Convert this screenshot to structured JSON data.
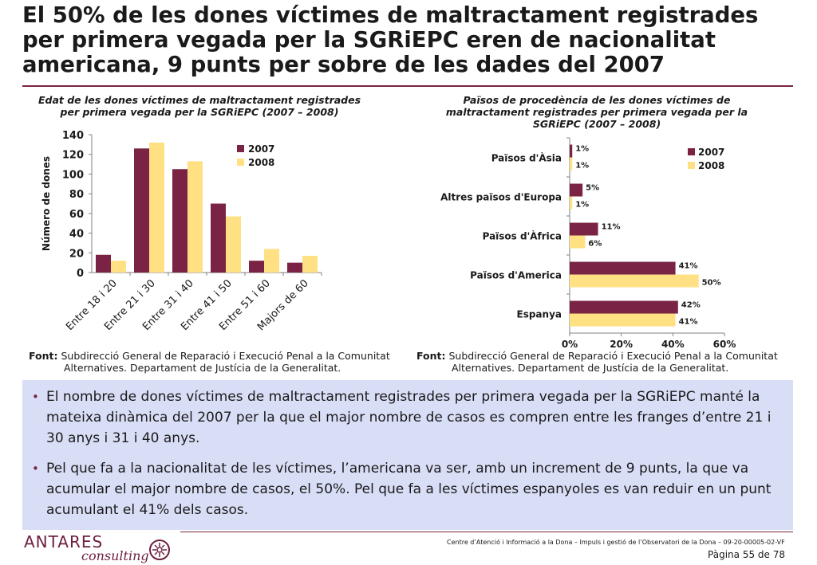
{
  "title": "El 50% de les dones víctimes de maltractament registrades per primera vegada per la SGRiEPC eren de nacionalitat americana, 9 punts per sobre de les dades del 2007",
  "colors": {
    "series_2007": "#7a2345",
    "series_2008": "#ffe083",
    "accent": "#7a2345",
    "bullets_bg": "#d9def7"
  },
  "chart_data": [
    {
      "type": "bar",
      "title": "Edat de les dones víctimes de maltractament registrades per primera vegada per la SGRiEPC (2007 – 2008)",
      "ylabel": "Número de dones",
      "xlabel": "",
      "categories": [
        "Entre 18 i 20",
        "Entre 21 i 30",
        "Entre 31 i 40",
        "Entre 41 i 50",
        "Entre 51 i 60",
        "Majors de 60"
      ],
      "series": [
        {
          "name": "2007",
          "values": [
            18,
            126,
            105,
            70,
            12,
            10
          ]
        },
        {
          "name": "2008",
          "values": [
            12,
            132,
            113,
            57,
            24,
            17
          ]
        }
      ],
      "ylim": [
        0,
        140
      ],
      "yticks": [
        "0",
        "20",
        "40",
        "60",
        "80",
        "100",
        "120",
        "140"
      ],
      "legend": "top-right",
      "grid": false
    },
    {
      "type": "bar",
      "orientation": "horizontal",
      "title": "Països de procedència de les dones víctimes de maltractament registrades per primera vegada per la SGRiEPC (2007 – 2008)",
      "categories": [
        "Països d'Àsia",
        "Altres països d'Europa",
        "Països d'Àfrica",
        "Països d'America",
        "Espanya"
      ],
      "series": [
        {
          "name": "2007",
          "values": [
            1,
            5,
            11,
            41,
            42
          ],
          "labels": [
            "1%",
            "5%",
            "11%",
            "41%",
            "42%"
          ]
        },
        {
          "name": "2008",
          "values": [
            1,
            1,
            6,
            50,
            41
          ],
          "labels": [
            "1%",
            "1%",
            "6%",
            "50%",
            "41%"
          ]
        }
      ],
      "xlim": [
        0,
        60
      ],
      "xticks": [
        "0%",
        "20%",
        "40%",
        "60%"
      ],
      "legend": "top-right",
      "grid": false
    }
  ],
  "source_notes": [
    {
      "label": "Font:",
      "line1": " Subdirecció General de Reparació i Execució Penal a la Comunitat",
      "line2": "Alternatives. Departament de Justícia de la Generalitat."
    },
    {
      "label": "Font:",
      "line1": " Subdirecció General de Reparació i Execució Penal a la Comunitat",
      "line2": "Alternatives. Departament de Justícia de la Generalitat."
    }
  ],
  "bullets": [
    "El nombre de dones víctimes de maltractament registrades per primera vegada per la SGRiEPC manté la mateixa dinàmica del 2007 per la que el major nombre de casos es compren entre les franges d’entre 21 i 30 anys i 31 i 40 anys.",
    "Pel que fa a la nacionalitat de les víctimes, l’americana va ser, amb un increment de 9 punts, la que va acumular el major nombre de casos, el 50%. Pel que fa a les víctimes espanyoles es van reduir en un punt acumulant el 41% dels casos."
  ],
  "footer": {
    "logo_name": "ANTARES",
    "logo_sub": "consulting",
    "center_text": "Centre d’Atenció i Informació a la Dona – Impuls i gestió de l’Observatori de la Dona – 09-20-00005-02-VF",
    "page": "Pàgina 55 de 78"
  }
}
